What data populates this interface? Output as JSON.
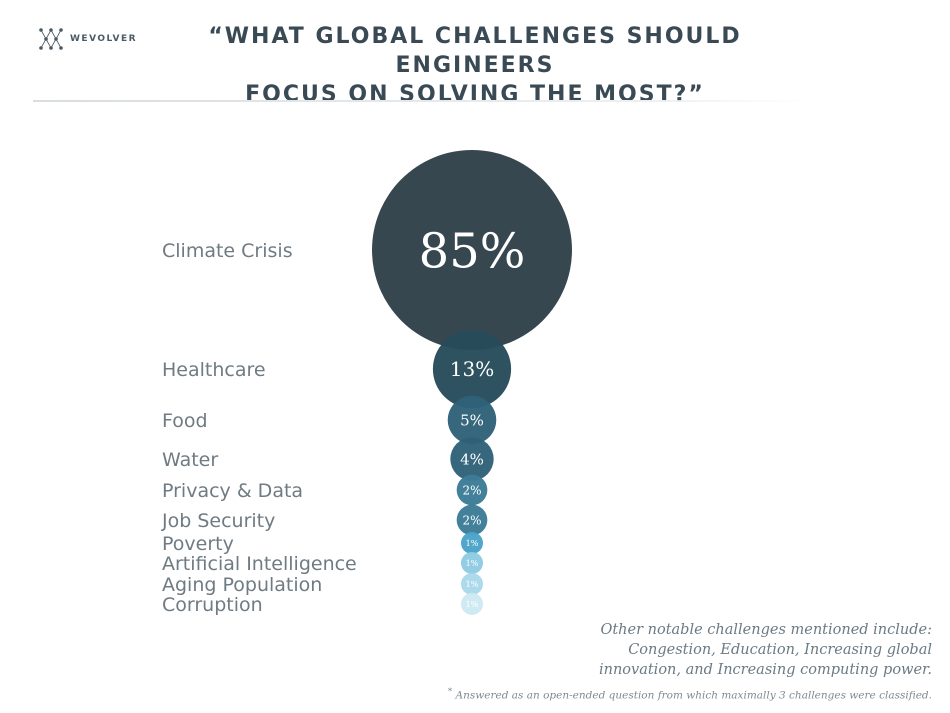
{
  "brand": {
    "name": "WEVOLVER"
  },
  "title_line1": "“WHAT GLOBAL CHALLENGES SHOULD ENGINEERS",
  "title_line2": "FOCUS ON SOLVING THE MOST?”",
  "chart_data": {
    "type": "bubble",
    "title": "“WHAT GLOBAL CHALLENGES SHOULD ENGINEERS FOCUS ON SOLVING THE MOST?”",
    "categories": [
      "Climate Crisis",
      "Healthcare",
      "Food",
      "Water",
      "Privacy & Data",
      "Job Security",
      "Poverty",
      "Artificial Intelligence",
      "Aging Population",
      "Corruption"
    ],
    "values": [
      85,
      13,
      5,
      4,
      2,
      2,
      1,
      1,
      1,
      1
    ],
    "data_labels": [
      "85%",
      "13%",
      "5%",
      "4%",
      "2%",
      "2%",
      "1%",
      "1%",
      "1%",
      "1%"
    ],
    "unit": "%",
    "colors": [
      "#2f3f48",
      "#264b5a",
      "#2e6178",
      "#2e6178",
      "#3b7c97",
      "#3b7c97",
      "#4aa3c9",
      "#8ecbe3",
      "#a9d8ea",
      "#cde9f3"
    ],
    "legend": "none",
    "grid": false
  },
  "note": "Other notable challenges mentioned include: Congestion, Education, Increasing global innovation, and Increasing computing power.",
  "footnote_mark": "*",
  "footnote": "Answered as an open-ended question from which maximally 3 challenges were classified."
}
